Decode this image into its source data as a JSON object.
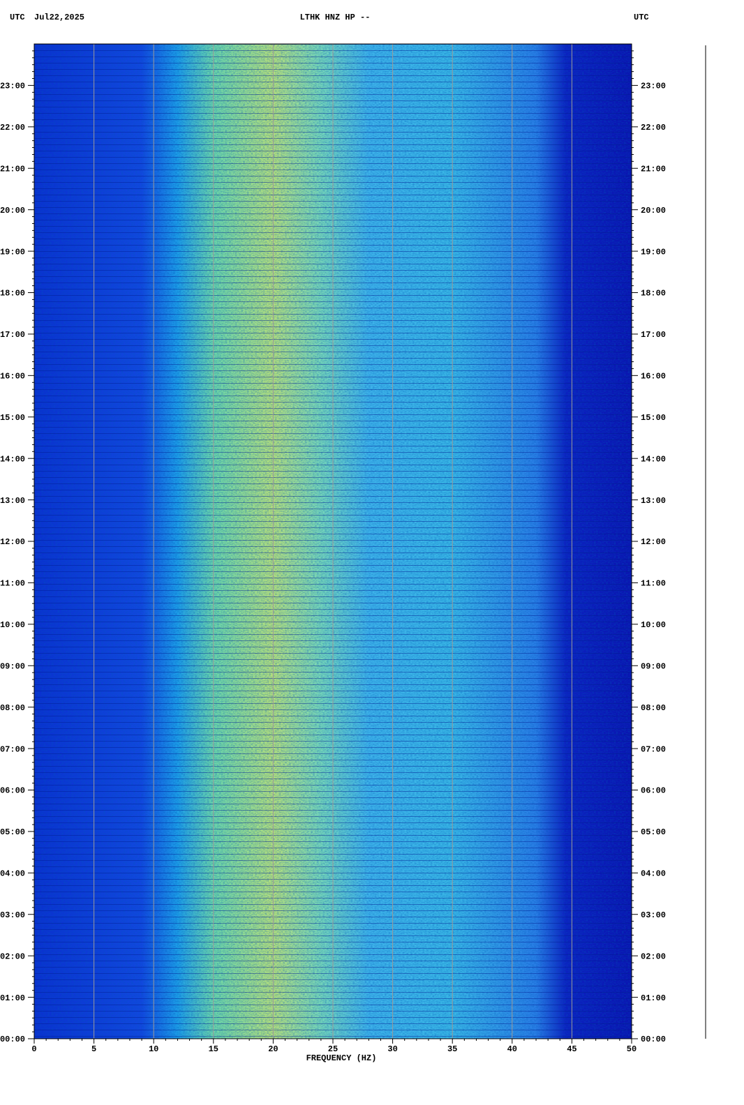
{
  "chart_data": {
    "type": "spectrogram",
    "title": "LTHK HNZ HP --",
    "timezone_left": "UTC",
    "date": "Jul22,2025",
    "timezone_right": "UTC",
    "xlabel": "FREQUENCY (HZ)",
    "xlim": [
      0,
      50
    ],
    "xticks": [
      0,
      5,
      10,
      15,
      20,
      25,
      30,
      35,
      40,
      45,
      50
    ],
    "ylim": [
      0,
      24
    ],
    "yticks": [
      {
        "value": 0,
        "label": "00:00"
      },
      {
        "value": 1,
        "label": "01:00"
      },
      {
        "value": 2,
        "label": "02:00"
      },
      {
        "value": 3,
        "label": "03:00"
      },
      {
        "value": 4,
        "label": "04:00"
      },
      {
        "value": 5,
        "label": "05:00"
      },
      {
        "value": 6,
        "label": "06:00"
      },
      {
        "value": 7,
        "label": "07:00"
      },
      {
        "value": 8,
        "label": "08:00"
      },
      {
        "value": 9,
        "label": "09:00"
      },
      {
        "value": 10,
        "label": "10:00"
      },
      {
        "value": 11,
        "label": "11:00"
      },
      {
        "value": 12,
        "label": "12:00"
      },
      {
        "value": 13,
        "label": "13:00"
      },
      {
        "value": 14,
        "label": "14:00"
      },
      {
        "value": 15,
        "label": "15:00"
      },
      {
        "value": 16,
        "label": "16:00"
      },
      {
        "value": 17,
        "label": "17:00"
      },
      {
        "value": 18,
        "label": "18:00"
      },
      {
        "value": 19,
        "label": "19:00"
      },
      {
        "value": 20,
        "label": "20:00"
      },
      {
        "value": 21,
        "label": "21:00"
      },
      {
        "value": 22,
        "label": "22:00"
      },
      {
        "value": 23,
        "label": "23:00"
      }
    ],
    "grid": true
  }
}
